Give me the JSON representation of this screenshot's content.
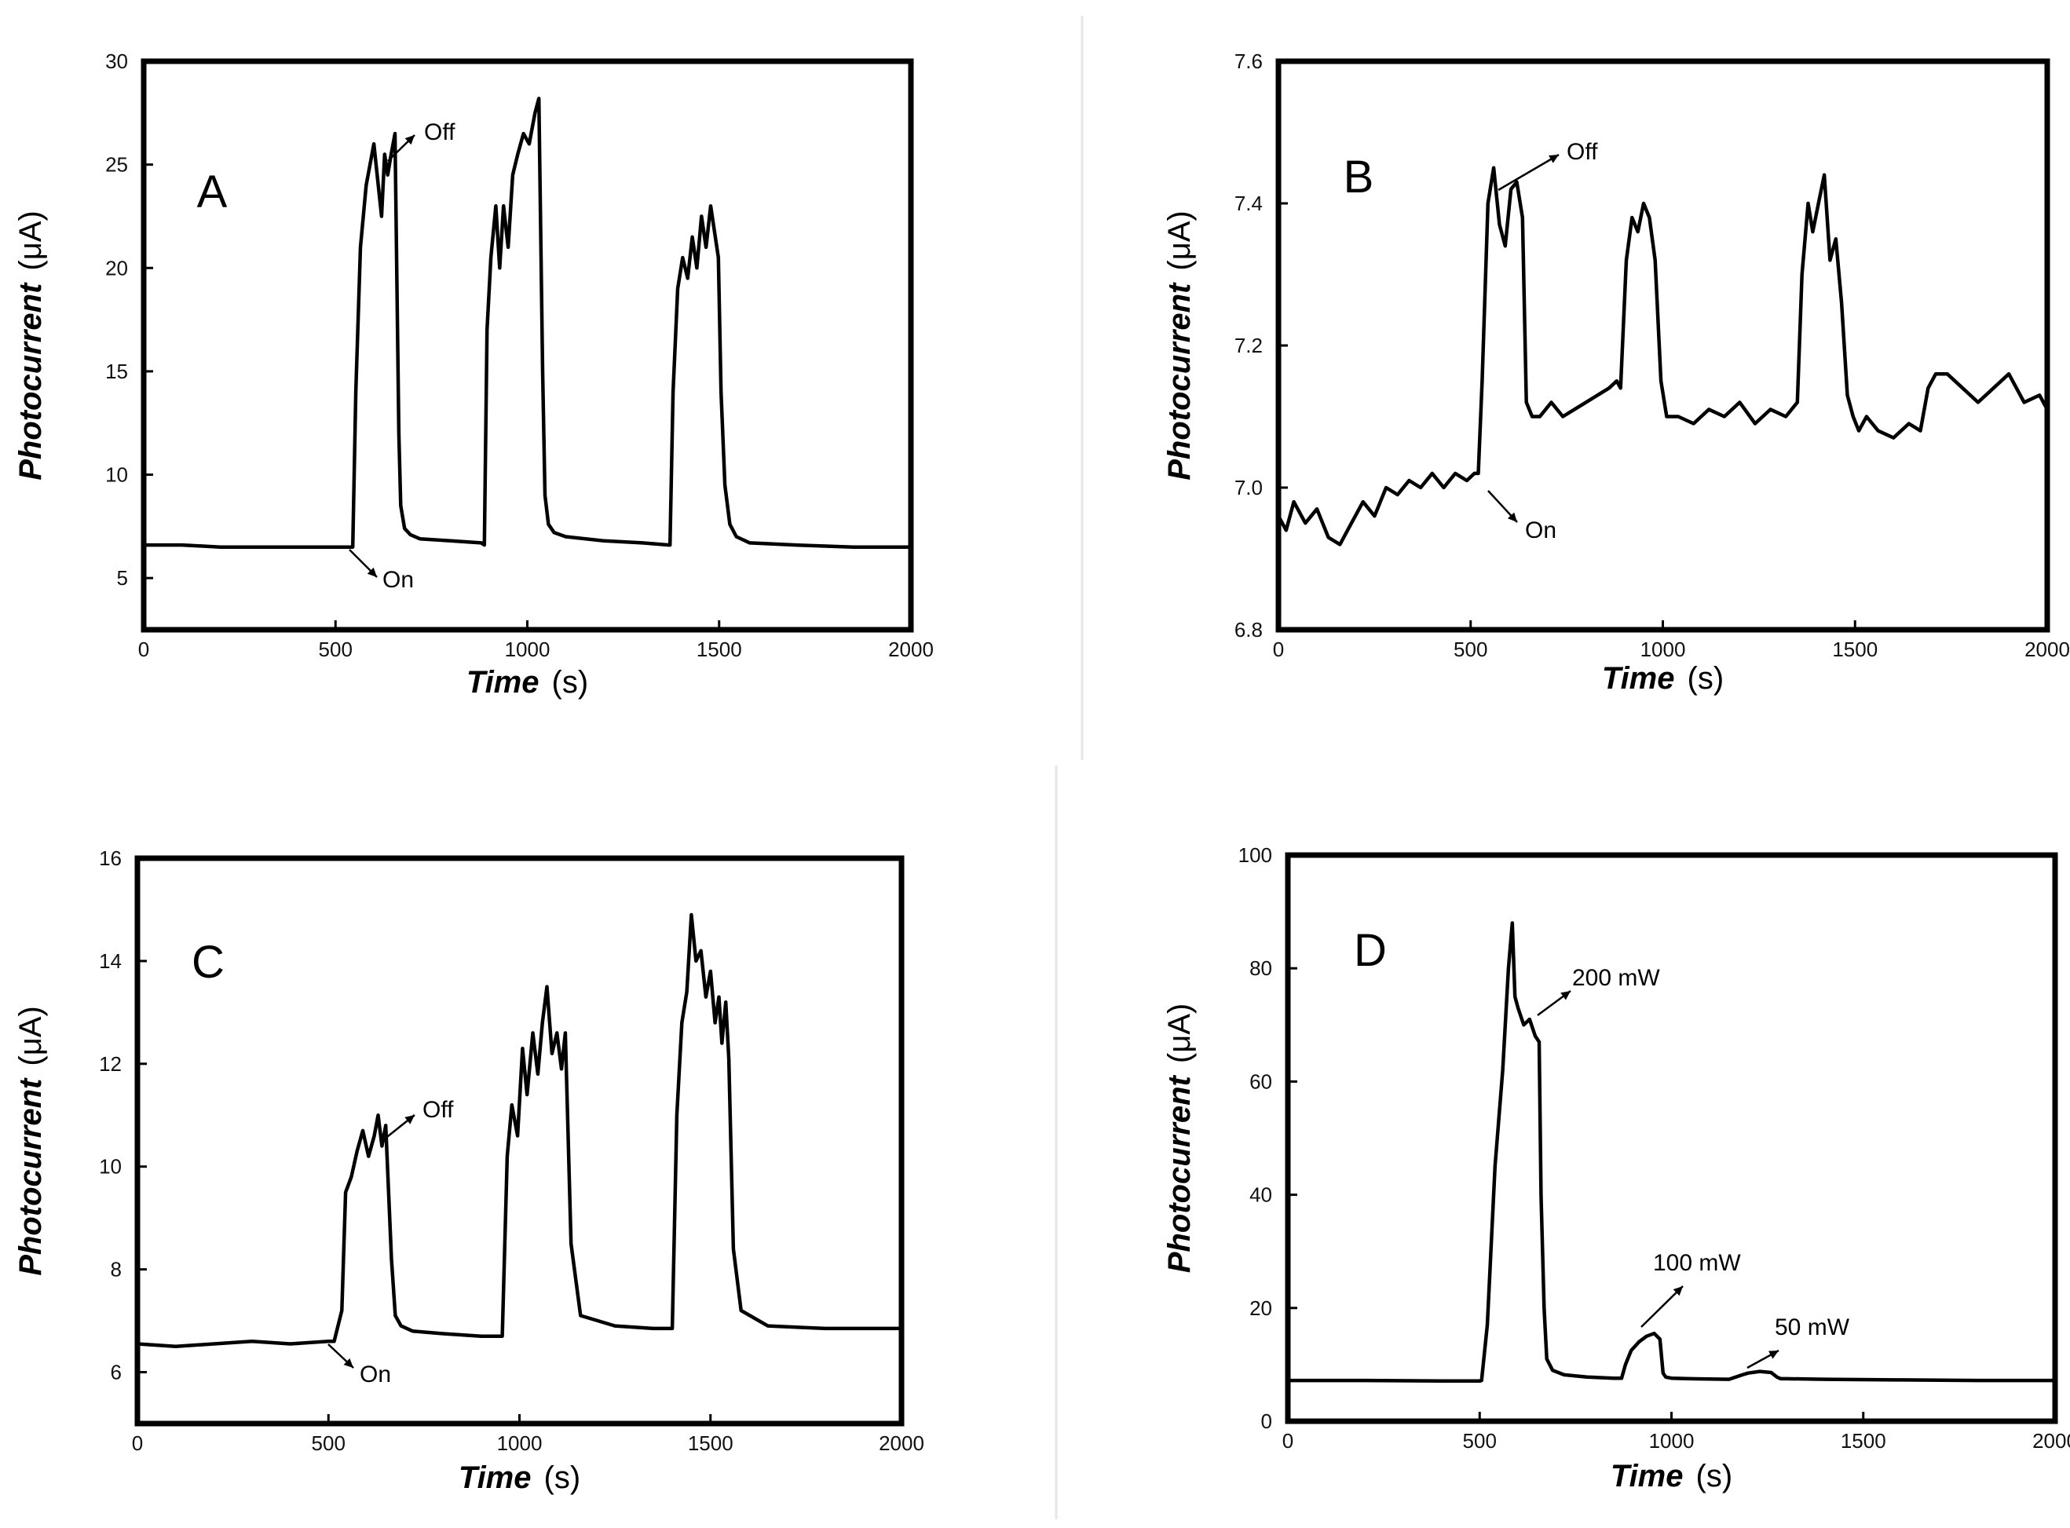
{
  "figure": {
    "panels": [
      {
        "letter": "A",
        "ylabel_main": "Photocurrent",
        "ylabel_unit": "(μA)",
        "xlabel_main": "Time",
        "xlabel_unit": "(s)",
        "annotations": [
          "Off",
          "On"
        ]
      },
      {
        "letter": "B",
        "ylabel_main": "Photocurrent",
        "ylabel_unit": "(μA)",
        "xlabel_main": "Time",
        "xlabel_unit": "(s)",
        "annotations": [
          "Off",
          "On"
        ]
      },
      {
        "letter": "C",
        "ylabel_main": "Photocurrent",
        "ylabel_unit": "(μA)",
        "xlabel_main": "Time",
        "xlabel_unit": "(s)",
        "annotations": [
          "Off",
          "On"
        ]
      },
      {
        "letter": "D",
        "ylabel_main": "Photocurrent",
        "ylabel_unit": "(μA)",
        "xlabel_main": "Time",
        "xlabel_unit": "(s)",
        "annotations": [
          "200 mW",
          "100 mW",
          "50 mW"
        ]
      }
    ]
  },
  "chart_data": [
    {
      "type": "line",
      "panel": "A",
      "xlabel": "Time (s)",
      "ylabel": "Photocurrent (μA)",
      "xlim": [
        0,
        2000
      ],
      "ylim": [
        2.5,
        30
      ],
      "xticks": [
        0,
        500,
        1000,
        1500,
        2000
      ],
      "yticks": [
        5,
        10,
        15,
        20,
        25,
        30
      ],
      "xtick_labels": [
        "0",
        "500",
        "1000",
        "1500",
        "2000"
      ],
      "ytick_labels": [
        "5",
        "10",
        "15",
        "20",
        "25",
        "30"
      ],
      "series": [
        {
          "name": "photocurrent",
          "x": [
            0,
            100,
            200,
            300,
            400,
            500,
            545,
            553,
            565,
            580,
            600,
            620,
            628,
            636,
            645,
            655,
            665,
            670,
            680,
            695,
            720,
            800,
            880,
            888,
            895,
            905,
            918,
            928,
            938,
            950,
            962,
            975,
            990,
            1005,
            1020,
            1030,
            1040,
            1046,
            1055,
            1070,
            1100,
            1200,
            1300,
            1370,
            1372,
            1380,
            1392,
            1405,
            1418,
            1430,
            1442,
            1454,
            1466,
            1478,
            1490,
            1498,
            1505,
            1515,
            1528,
            1545,
            1580,
            1700,
            1850,
            2000
          ],
          "y": [
            6.6,
            6.6,
            6.5,
            6.5,
            6.5,
            6.5,
            6.5,
            14,
            21,
            24,
            26,
            22.5,
            25.5,
            24.5,
            25.5,
            26.5,
            12,
            8.5,
            7.4,
            7.1,
            6.9,
            6.8,
            6.7,
            6.6,
            17,
            20.5,
            23,
            20,
            23,
            21,
            24.5,
            25.5,
            26.5,
            26,
            27.5,
            28.2,
            15,
            9,
            7.6,
            7.2,
            7.0,
            6.8,
            6.7,
            6.6,
            6.6,
            14,
            19,
            20.5,
            19.5,
            21.5,
            20,
            22.5,
            21,
            23,
            21.5,
            20.5,
            14,
            9.5,
            7.6,
            7.0,
            6.7,
            6.6,
            6.5,
            6.5
          ]
        }
      ],
      "annotations": [
        {
          "text": "Off",
          "x": 665,
          "y": 26.5
        },
        {
          "text": "On",
          "x": 545,
          "y": 6.5
        }
      ]
    },
    {
      "type": "line",
      "panel": "B",
      "xlabel": "Time (s)",
      "ylabel": "Photocurrent (μA)",
      "xlim": [
        0,
        2000
      ],
      "ylim": [
        6.8,
        7.6
      ],
      "xticks": [
        0,
        500,
        1000,
        1500,
        2000
      ],
      "yticks": [
        6.8,
        7.0,
        7.2,
        7.4,
        7.6
      ],
      "xtick_labels": [
        "0",
        "500",
        "1000",
        "1500",
        "2000"
      ],
      "ytick_labels": [
        "6.8",
        "7.0",
        "7.2",
        "7.4",
        "7.6"
      ],
      "series": [
        {
          "name": "photocurrent",
          "x": [
            0,
            20,
            40,
            70,
            100,
            130,
            160,
            190,
            220,
            250,
            280,
            310,
            340,
            370,
            400,
            430,
            460,
            490,
            510,
            520,
            530,
            545,
            560,
            575,
            590,
            605,
            620,
            635,
            645,
            660,
            680,
            710,
            740,
            770,
            800,
            830,
            860,
            880,
            890,
            905,
            920,
            935,
            950,
            965,
            980,
            995,
            1010,
            1040,
            1080,
            1120,
            1160,
            1200,
            1240,
            1280,
            1320,
            1350,
            1362,
            1378,
            1390,
            1405,
            1420,
            1435,
            1450,
            1465,
            1480,
            1495,
            1510,
            1530,
            1560,
            1600,
            1640,
            1670,
            1690,
            1710,
            1740,
            1780,
            1820,
            1860,
            1900,
            1940,
            1980,
            2000
          ],
          "y": [
            6.96,
            6.94,
            6.98,
            6.95,
            6.97,
            6.93,
            6.92,
            6.95,
            6.98,
            6.96,
            7.0,
            6.99,
            7.01,
            7.0,
            7.02,
            7.0,
            7.02,
            7.01,
            7.02,
            7.02,
            7.15,
            7.4,
            7.45,
            7.37,
            7.34,
            7.42,
            7.43,
            7.38,
            7.12,
            7.1,
            7.1,
            7.12,
            7.1,
            7.11,
            7.12,
            7.13,
            7.14,
            7.15,
            7.14,
            7.32,
            7.38,
            7.36,
            7.4,
            7.38,
            7.32,
            7.15,
            7.1,
            7.1,
            7.09,
            7.11,
            7.1,
            7.12,
            7.09,
            7.11,
            7.1,
            7.12,
            7.3,
            7.4,
            7.36,
            7.4,
            7.44,
            7.32,
            7.35,
            7.26,
            7.13,
            7.1,
            7.08,
            7.1,
            7.08,
            7.07,
            7.09,
            7.08,
            7.14,
            7.16,
            7.16,
            7.14,
            7.12,
            7.14,
            7.16,
            7.12,
            7.13,
            7.11
          ]
        }
      ],
      "annotations": [
        {
          "text": "Off",
          "x": 625,
          "y": 7.43
        },
        {
          "text": "On",
          "x": 530,
          "y": 7.02
        }
      ]
    },
    {
      "type": "line",
      "panel": "C",
      "xlabel": "Time (s)",
      "ylabel": "Photocurrent (μA)",
      "xlim": [
        0,
        2000
      ],
      "ylim": [
        5,
        16
      ],
      "xticks": [
        0,
        500,
        1000,
        1500,
        2000
      ],
      "yticks": [
        6,
        8,
        10,
        12,
        14,
        16
      ],
      "xtick_labels": [
        "0",
        "500",
        "1000",
        "1500",
        "2000"
      ],
      "ytick_labels": [
        "6",
        "8",
        "10",
        "12",
        "14",
        "16"
      ],
      "series": [
        {
          "name": "photocurrent",
          "x": [
            0,
            100,
            200,
            300,
            400,
            500,
            515,
            535,
            545,
            560,
            575,
            590,
            605,
            620,
            630,
            640,
            650,
            665,
            675,
            690,
            720,
            800,
            900,
            950,
            955,
            968,
            980,
            995,
            1008,
            1020,
            1035,
            1048,
            1060,
            1072,
            1085,
            1098,
            1110,
            1120,
            1135,
            1160,
            1250,
            1350,
            1395,
            1400,
            1412,
            1425,
            1438,
            1450,
            1462,
            1475,
            1488,
            1500,
            1512,
            1522,
            1530,
            1540,
            1548,
            1560,
            1580,
            1650,
            1800,
            2000
          ],
          "y": [
            6.55,
            6.5,
            6.55,
            6.6,
            6.55,
            6.6,
            6.6,
            7.2,
            9.5,
            9.8,
            10.3,
            10.7,
            10.2,
            10.6,
            11,
            10.4,
            10.8,
            8.2,
            7.1,
            6.9,
            6.8,
            6.75,
            6.7,
            6.7,
            6.7,
            10.2,
            11.2,
            10.6,
            12.3,
            11.4,
            12.6,
            11.8,
            12.8,
            13.5,
            12.2,
            12.6,
            11.9,
            12.6,
            8.5,
            7.1,
            6.9,
            6.85,
            6.85,
            6.85,
            11,
            12.8,
            13.4,
            14.9,
            14,
            14.2,
            13.3,
            13.8,
            12.8,
            13.3,
            12.4,
            13.2,
            12.1,
            8.4,
            7.2,
            6.9,
            6.85,
            6.85
          ]
        }
      ],
      "annotations": [
        {
          "text": "Off",
          "x": 650,
          "y": 10.8
        },
        {
          "text": "On",
          "x": 530,
          "y": 6.6
        }
      ]
    },
    {
      "type": "line",
      "panel": "D",
      "xlabel": "Time (s)",
      "ylabel": "Photocurrent (μA)",
      "xlim": [
        0,
        2000
      ],
      "ylim": [
        0,
        100
      ],
      "xticks": [
        0,
        500,
        1000,
        1500,
        2000
      ],
      "yticks": [
        0,
        20,
        40,
        60,
        80,
        100
      ],
      "xtick_labels": [
        "0",
        "500",
        "1000",
        "1500",
        "2000"
      ],
      "ytick_labels": [
        "0",
        "20",
        "40",
        "60",
        "80",
        "100"
      ],
      "series": [
        {
          "name": "photocurrent",
          "x": [
            0,
            200,
            400,
            500,
            505,
            520,
            540,
            560,
            575,
            585,
            592,
            600,
            615,
            630,
            645,
            655,
            660,
            668,
            675,
            690,
            720,
            780,
            850,
            870,
            880,
            895,
            915,
            935,
            955,
            970,
            978,
            985,
            1000,
            1050,
            1150,
            1185,
            1200,
            1230,
            1260,
            1275,
            1285,
            1300,
            1400,
            1600,
            1800,
            2000
          ],
          "y": [
            7.2,
            7.2,
            7.1,
            7.1,
            7.2,
            17,
            45,
            62,
            80,
            88,
            75,
            73,
            70,
            71,
            68,
            67,
            40,
            20,
            11,
            9,
            8.2,
            7.8,
            7.6,
            7.6,
            10,
            12.5,
            14,
            15,
            15.5,
            14.5,
            8.5,
            7.8,
            7.6,
            7.5,
            7.4,
            8.2,
            8.5,
            8.8,
            8.6,
            7.8,
            7.5,
            7.5,
            7.4,
            7.3,
            7.2,
            7.2
          ]
        }
      ],
      "annotations": [
        {
          "text": "200 mW",
          "x": 635,
          "y": 71
        },
        {
          "text": "100 mW",
          "x": 960,
          "y": 15.5
        },
        {
          "text": "50 mW",
          "x": 1260,
          "y": 8.6
        }
      ]
    }
  ]
}
